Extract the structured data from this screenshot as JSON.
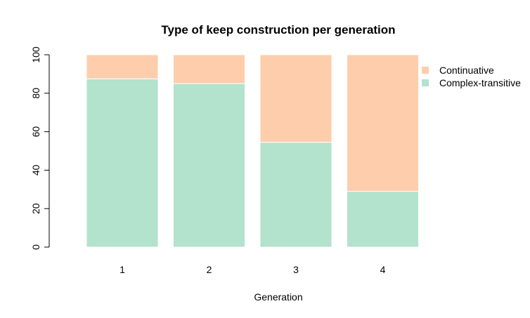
{
  "chart_data": {
    "type": "bar",
    "stacked": true,
    "title": "Type of keep construction per generation",
    "xlabel": "Generation",
    "ylabel": "",
    "categories": [
      "1",
      "2",
      "3",
      "4"
    ],
    "ylim": [
      0,
      100
    ],
    "yticks": [
      0,
      20,
      40,
      60,
      80,
      100
    ],
    "grid": false,
    "legend_position": "right",
    "series": [
      {
        "name": "Complex-transitive",
        "color": "#b3e2cd",
        "values": [
          87.5,
          85,
          54.5,
          29
        ]
      },
      {
        "name": "Continuative",
        "color": "#fdcdac",
        "values": [
          12.5,
          15,
          45.5,
          71
        ]
      }
    ],
    "legend_order": [
      "Continuative",
      "Complex-transitive"
    ]
  }
}
